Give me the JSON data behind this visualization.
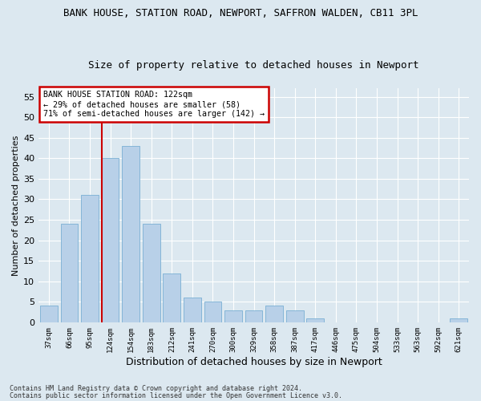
{
  "title1": "BANK HOUSE, STATION ROAD, NEWPORT, SAFFRON WALDEN, CB11 3PL",
  "title2": "Size of property relative to detached houses in Newport",
  "xlabel": "Distribution of detached houses by size in Newport",
  "ylabel": "Number of detached properties",
  "categories": [
    "37sqm",
    "66sqm",
    "95sqm",
    "124sqm",
    "154sqm",
    "183sqm",
    "212sqm",
    "241sqm",
    "270sqm",
    "300sqm",
    "329sqm",
    "358sqm",
    "387sqm",
    "417sqm",
    "446sqm",
    "475sqm",
    "504sqm",
    "533sqm",
    "563sqm",
    "592sqm",
    "621sqm"
  ],
  "values": [
    4,
    24,
    31,
    40,
    43,
    24,
    12,
    6,
    5,
    3,
    3,
    4,
    3,
    1,
    0,
    0,
    0,
    0,
    0,
    0,
    1
  ],
  "bar_color": "#b8d0e8",
  "bar_edge_color": "#7aafd4",
  "vline_color": "#cc0000",
  "vline_x_index": 3,
  "annotation_title": "BANK HOUSE STATION ROAD: 122sqm",
  "annotation_line2": "← 29% of detached houses are smaller (58)",
  "annotation_line3": "71% of semi-detached houses are larger (142) →",
  "annotation_box_color": "#cc0000",
  "annotation_bg": "#ffffff",
  "ylim": [
    0,
    57
  ],
  "yticks": [
    0,
    5,
    10,
    15,
    20,
    25,
    30,
    35,
    40,
    45,
    50,
    55
  ],
  "footnote1": "Contains HM Land Registry data © Crown copyright and database right 2024.",
  "footnote2": "Contains public sector information licensed under the Open Government Licence v3.0.",
  "bg_color": "#dce8f0",
  "plot_bg_color": "#dce8f0",
  "title1_fontsize": 9,
  "title2_fontsize": 9,
  "ylabel_fontsize": 8,
  "xlabel_fontsize": 9
}
